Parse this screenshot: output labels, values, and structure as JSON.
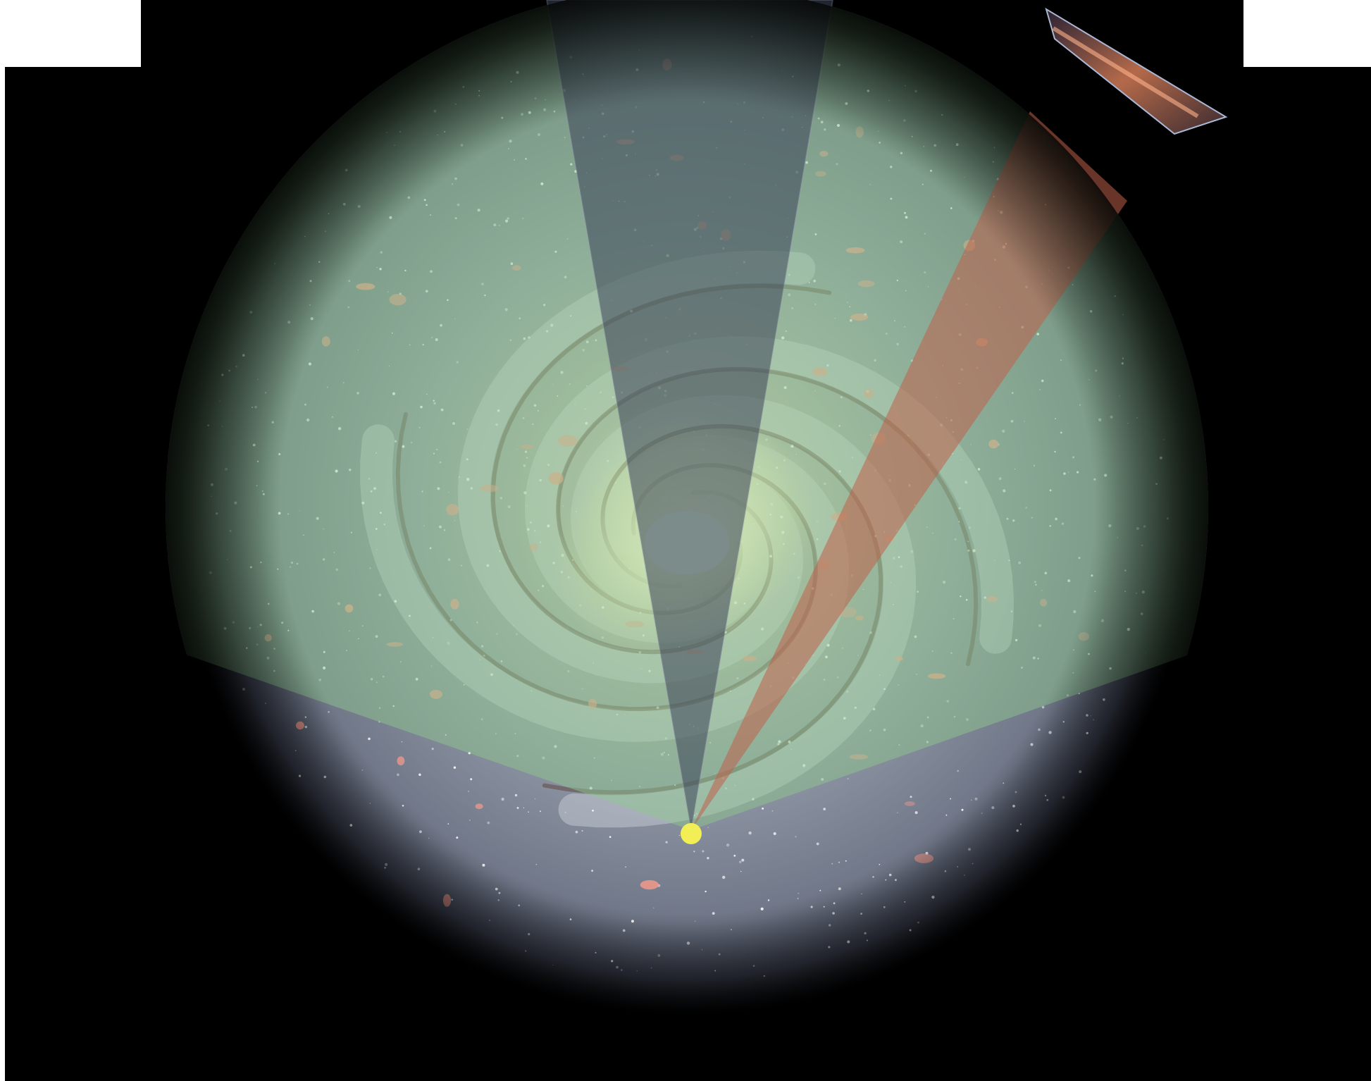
{
  "figure": {
    "description_visible_text": "",
    "colors": {
      "page_background": "#ffffff",
      "space": "#000000",
      "galaxy_disk": "#9aa3b0",
      "galactic_bulge": "#fff4cc",
      "coverage_overlay": "#8fc98f",
      "narrow_wedge": "#4a5068",
      "survey_beam": "#c0614a",
      "sun_marker": "#f2ee55"
    },
    "icons": {
      "sun_marker": "sun-position-dot",
      "inset": "sky-survey-strip-thumbnail"
    }
  }
}
